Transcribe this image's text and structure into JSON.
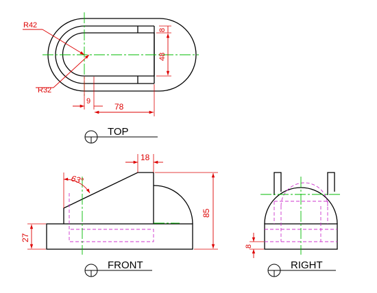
{
  "colors": {
    "outline": "#000000",
    "dimension": "#dd0000",
    "centerline": "#00bb00",
    "hidden": "#cc33cc"
  },
  "top_view": {
    "radius_outer": "R42",
    "radius_inner": "R32",
    "dim_slot_depth": "8",
    "dim_slot_width": "48",
    "dim_offset": "9",
    "dim_length": "78",
    "view_label": "TOP"
  },
  "front_view": {
    "dim_top_width": "18",
    "angle": "63°",
    "dim_height": "85",
    "dim_base": "27",
    "view_label": "FRONT"
  },
  "right_view": {
    "dim_bottom": "8",
    "view_label": "RIGHT"
  }
}
